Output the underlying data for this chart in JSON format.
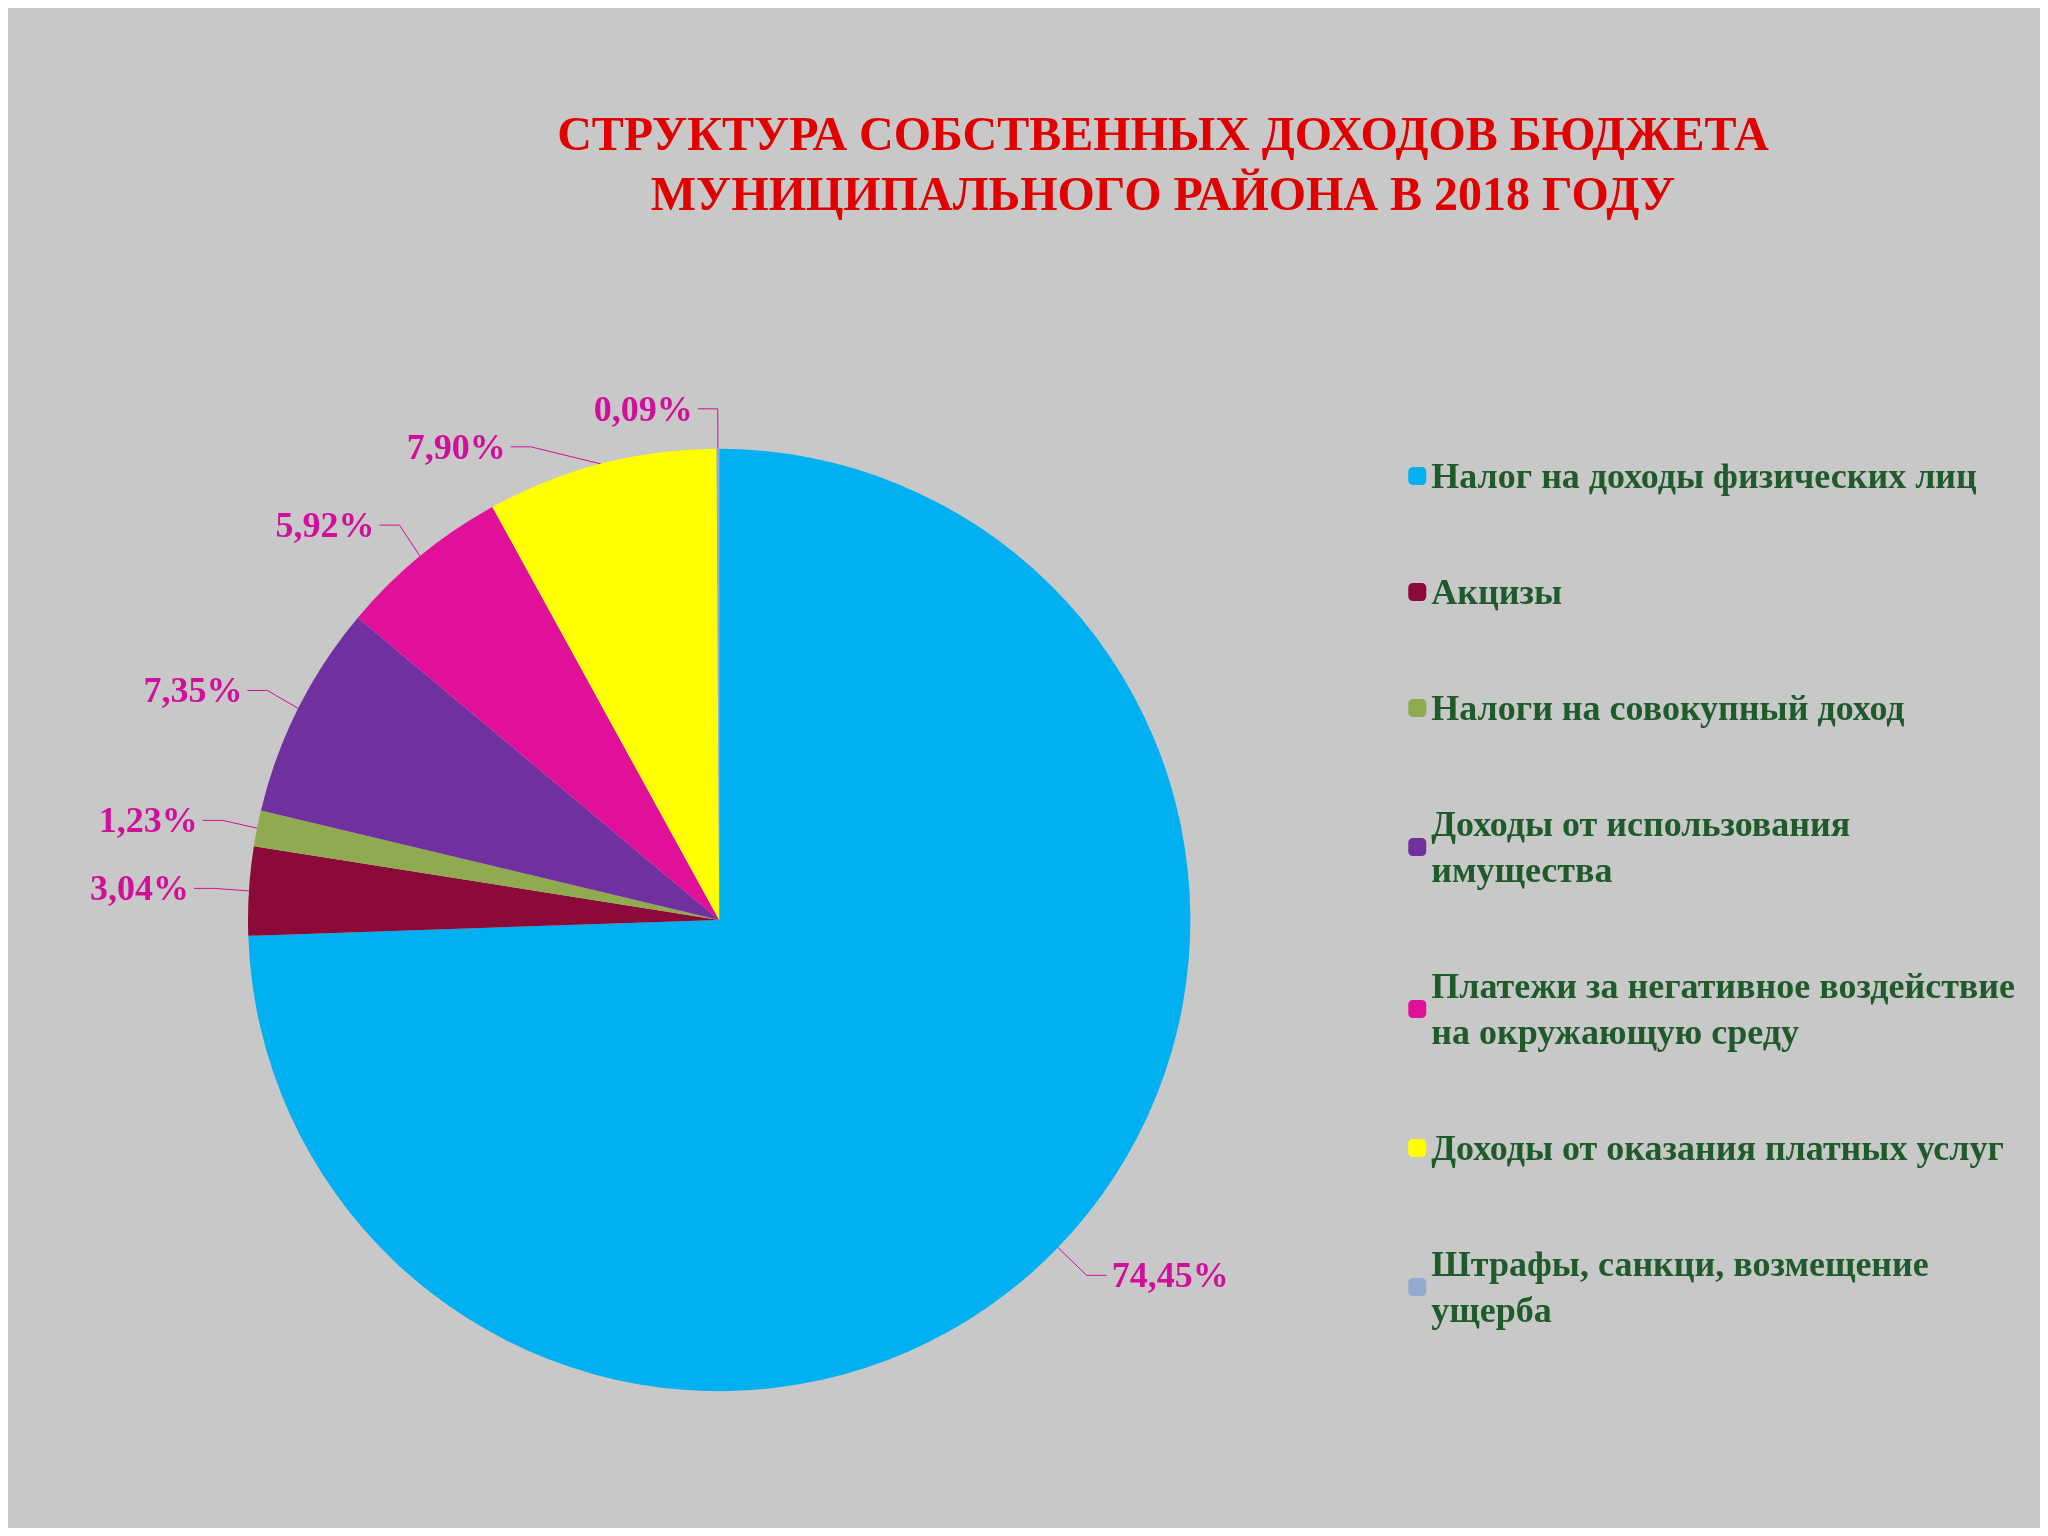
{
  "chart_data": {
    "type": "pie",
    "title": "СТРУКТУРА СОБСТВЕННЫХ ДОХОДОВ БЮДЖЕТА\nМУНИЦИПАЛЬНОГО РАЙОНА В 2018 ГОДУ",
    "categories": [
      "Налог на доходы физических лиц",
      "Акцизы",
      "Налоги на совокупный доход",
      "Доходы от использования\nимущества",
      "Платежи за негативное воздействие\nна окружающую среду",
      "Доходы от оказания платных услуг",
      "Штрафы, санкци, возмещение\nущерба"
    ],
    "values": [
      74.45,
      3.04,
      1.23,
      7.35,
      5.92,
      7.9,
      0.09
    ],
    "value_labels": [
      "74,45%",
      "3,04%",
      "1,23%",
      "7,35%",
      "5,92%",
      "7,90%",
      "0,09%"
    ],
    "colors": [
      "#00b0f0",
      "#8b0a3a",
      "#8faa4f",
      "#7030a0",
      "#e0109b",
      "#ffff00",
      "#95a8d0"
    ],
    "legend": "right"
  }
}
